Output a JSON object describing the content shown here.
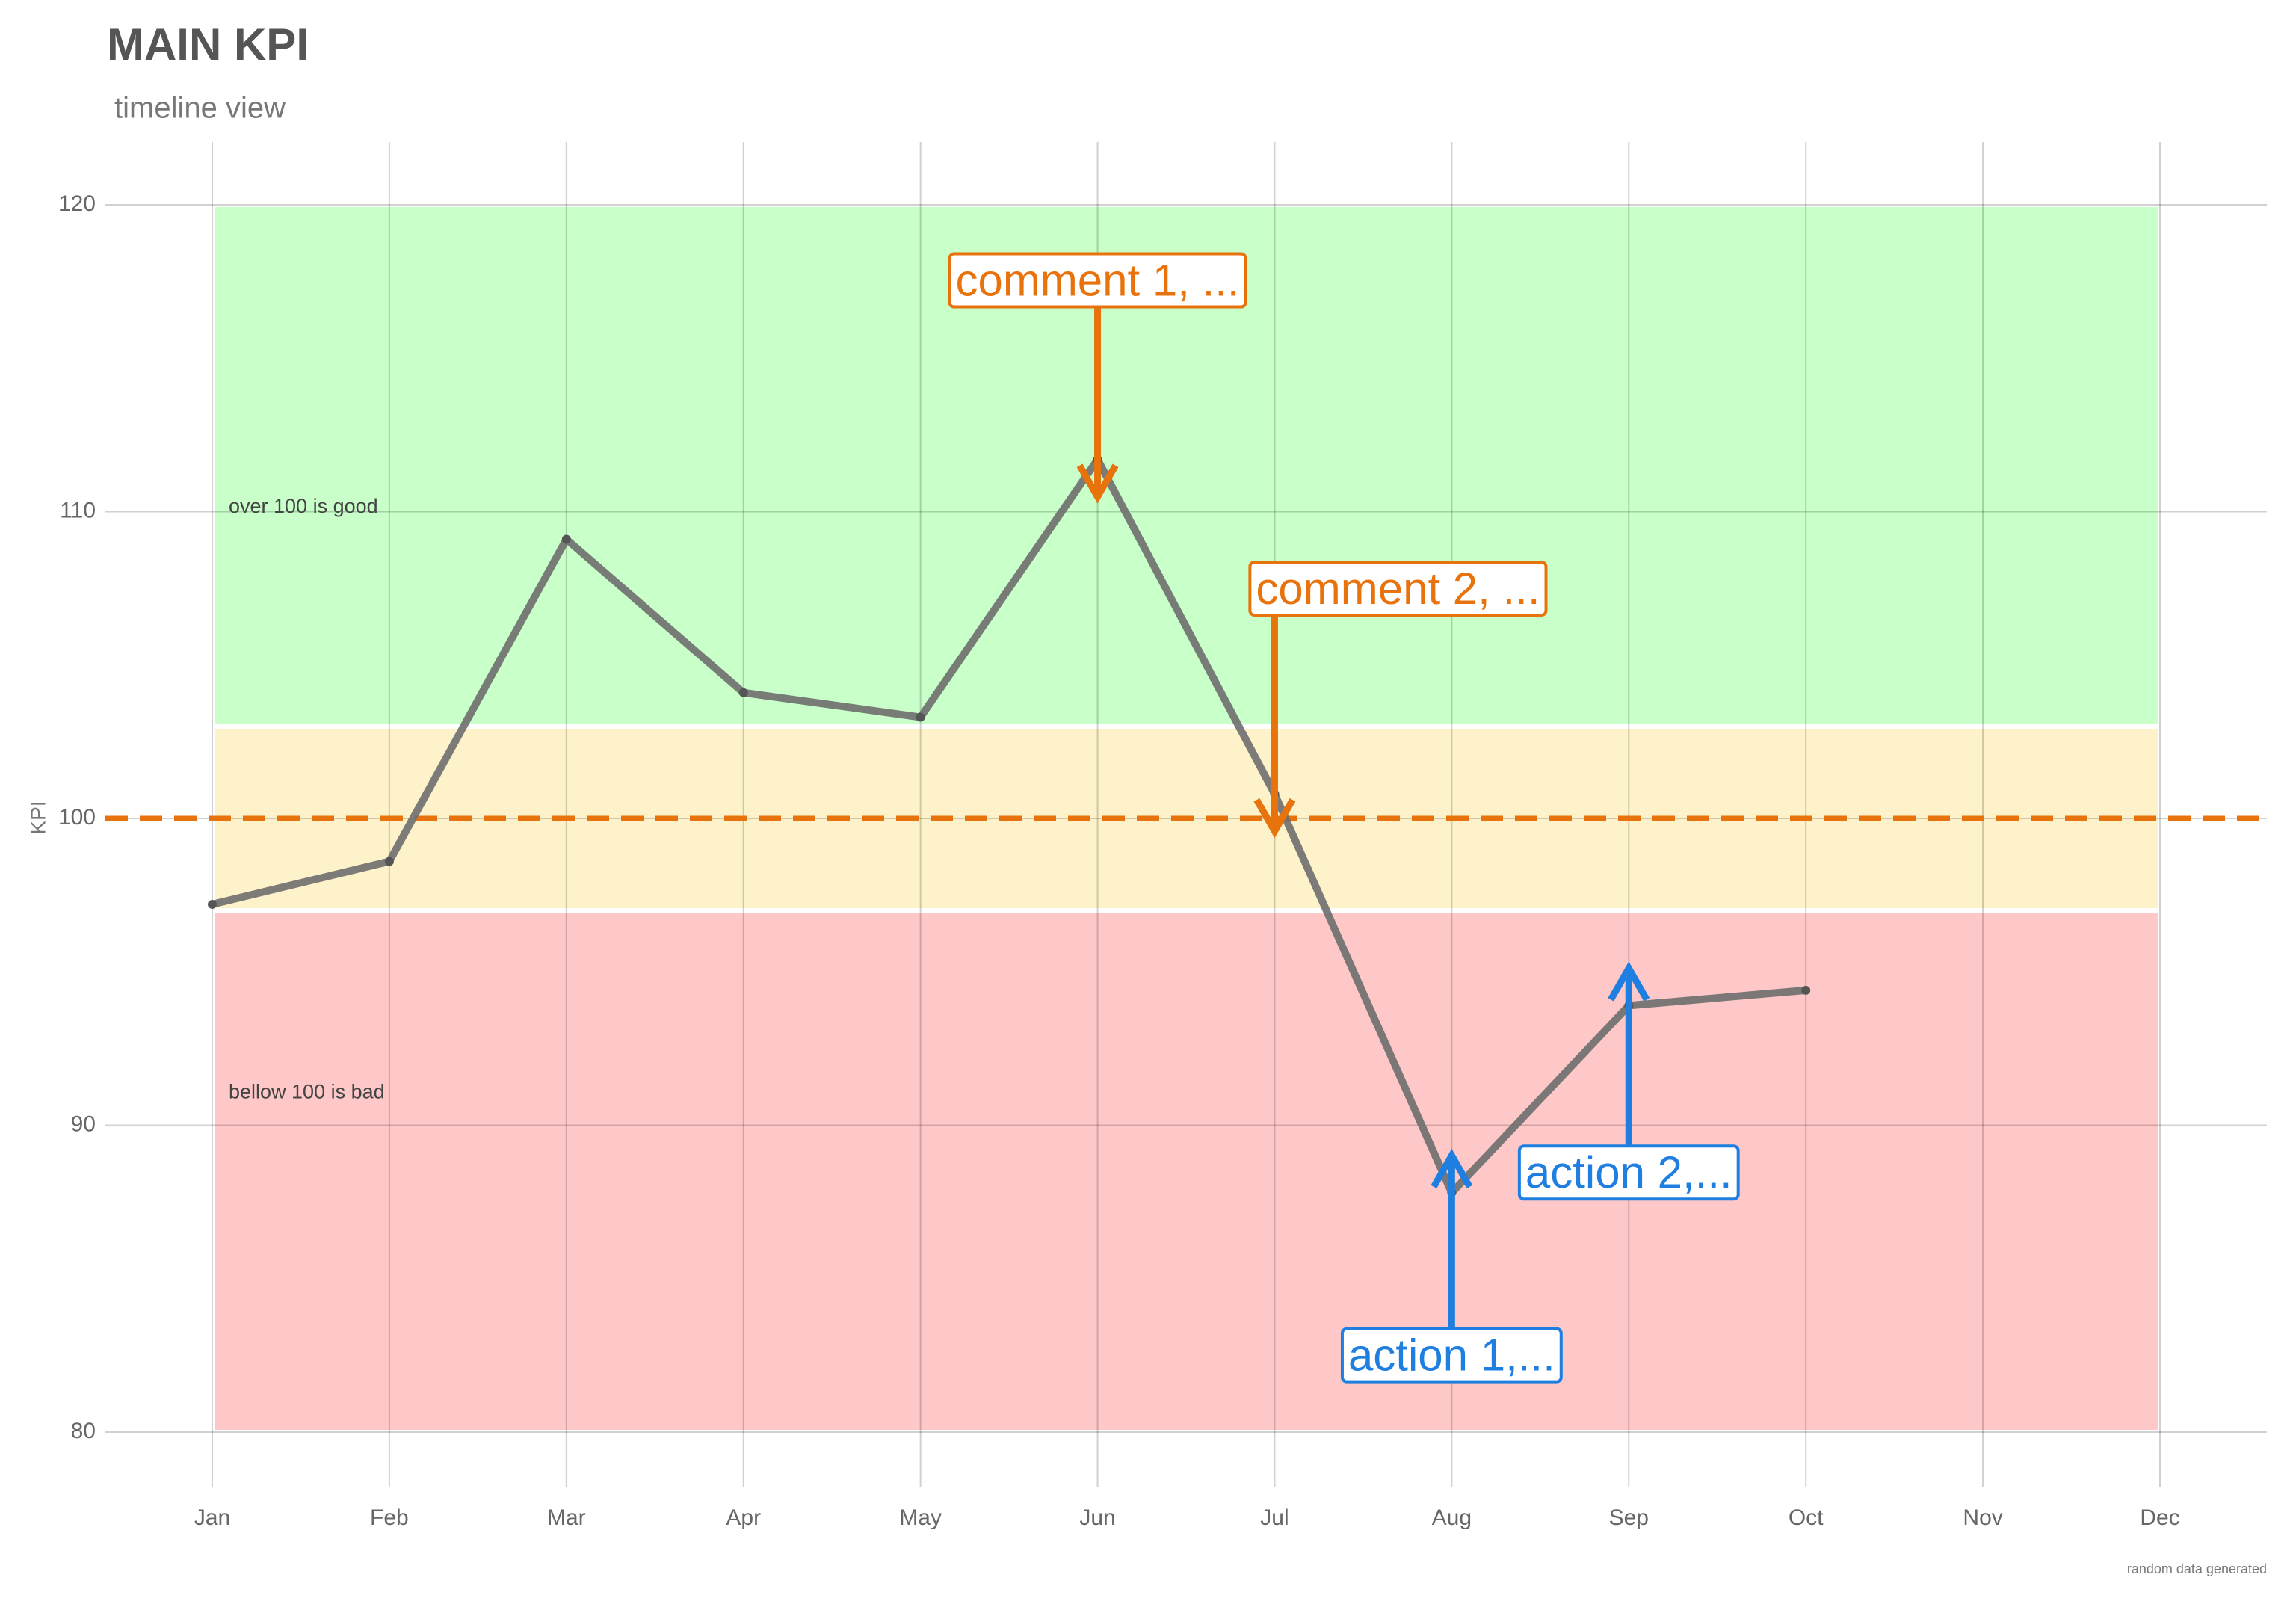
{
  "chart_data": {
    "type": "line",
    "title": "MAIN KPI",
    "subtitle": "timeline view",
    "y_label": "KPI",
    "caption": "random data generated",
    "categories": [
      "Jan",
      "Feb",
      "Mar",
      "Apr",
      "May",
      "Jun",
      "Jul",
      "Aug",
      "Sep",
      "Oct",
      "Nov",
      "Dec"
    ],
    "series": [
      {
        "name": "KPI",
        "color": "#6e6e6e",
        "values": [
          97.2,
          98.6,
          109.1,
          104.1,
          103.3,
          111.7,
          100.8,
          87.8,
          93.9,
          94.4,
          null,
          null
        ]
      }
    ],
    "ylim": [
      80,
      120
    ],
    "yticks": [
      80,
      90,
      100,
      110,
      120
    ],
    "grid": true,
    "reference_line": {
      "value": 100,
      "color": "#e8730c"
    },
    "bands": [
      {
        "ymin": 103,
        "ymax": 120,
        "color": "#c9ffc9",
        "label": "over 100 is good"
      },
      {
        "ymin": 97,
        "ymax": 103,
        "color": "#fdf2c9"
      },
      {
        "ymin": 80,
        "ymax": 97,
        "color": "#ffc8c8",
        "label": "bellow 100 is bad"
      }
    ],
    "annotations": [
      {
        "text": "comment 1, ...",
        "x": "Jun",
        "color": "#e8730c"
      },
      {
        "text": "comment 2, ...",
        "x": "Jul",
        "color": "#e8730c"
      },
      {
        "text": "action 1,...",
        "x": "Aug",
        "color": "#1f7fe0"
      },
      {
        "text": "action 2,...",
        "x": "Sep",
        "color": "#1f7fe0"
      }
    ]
  }
}
